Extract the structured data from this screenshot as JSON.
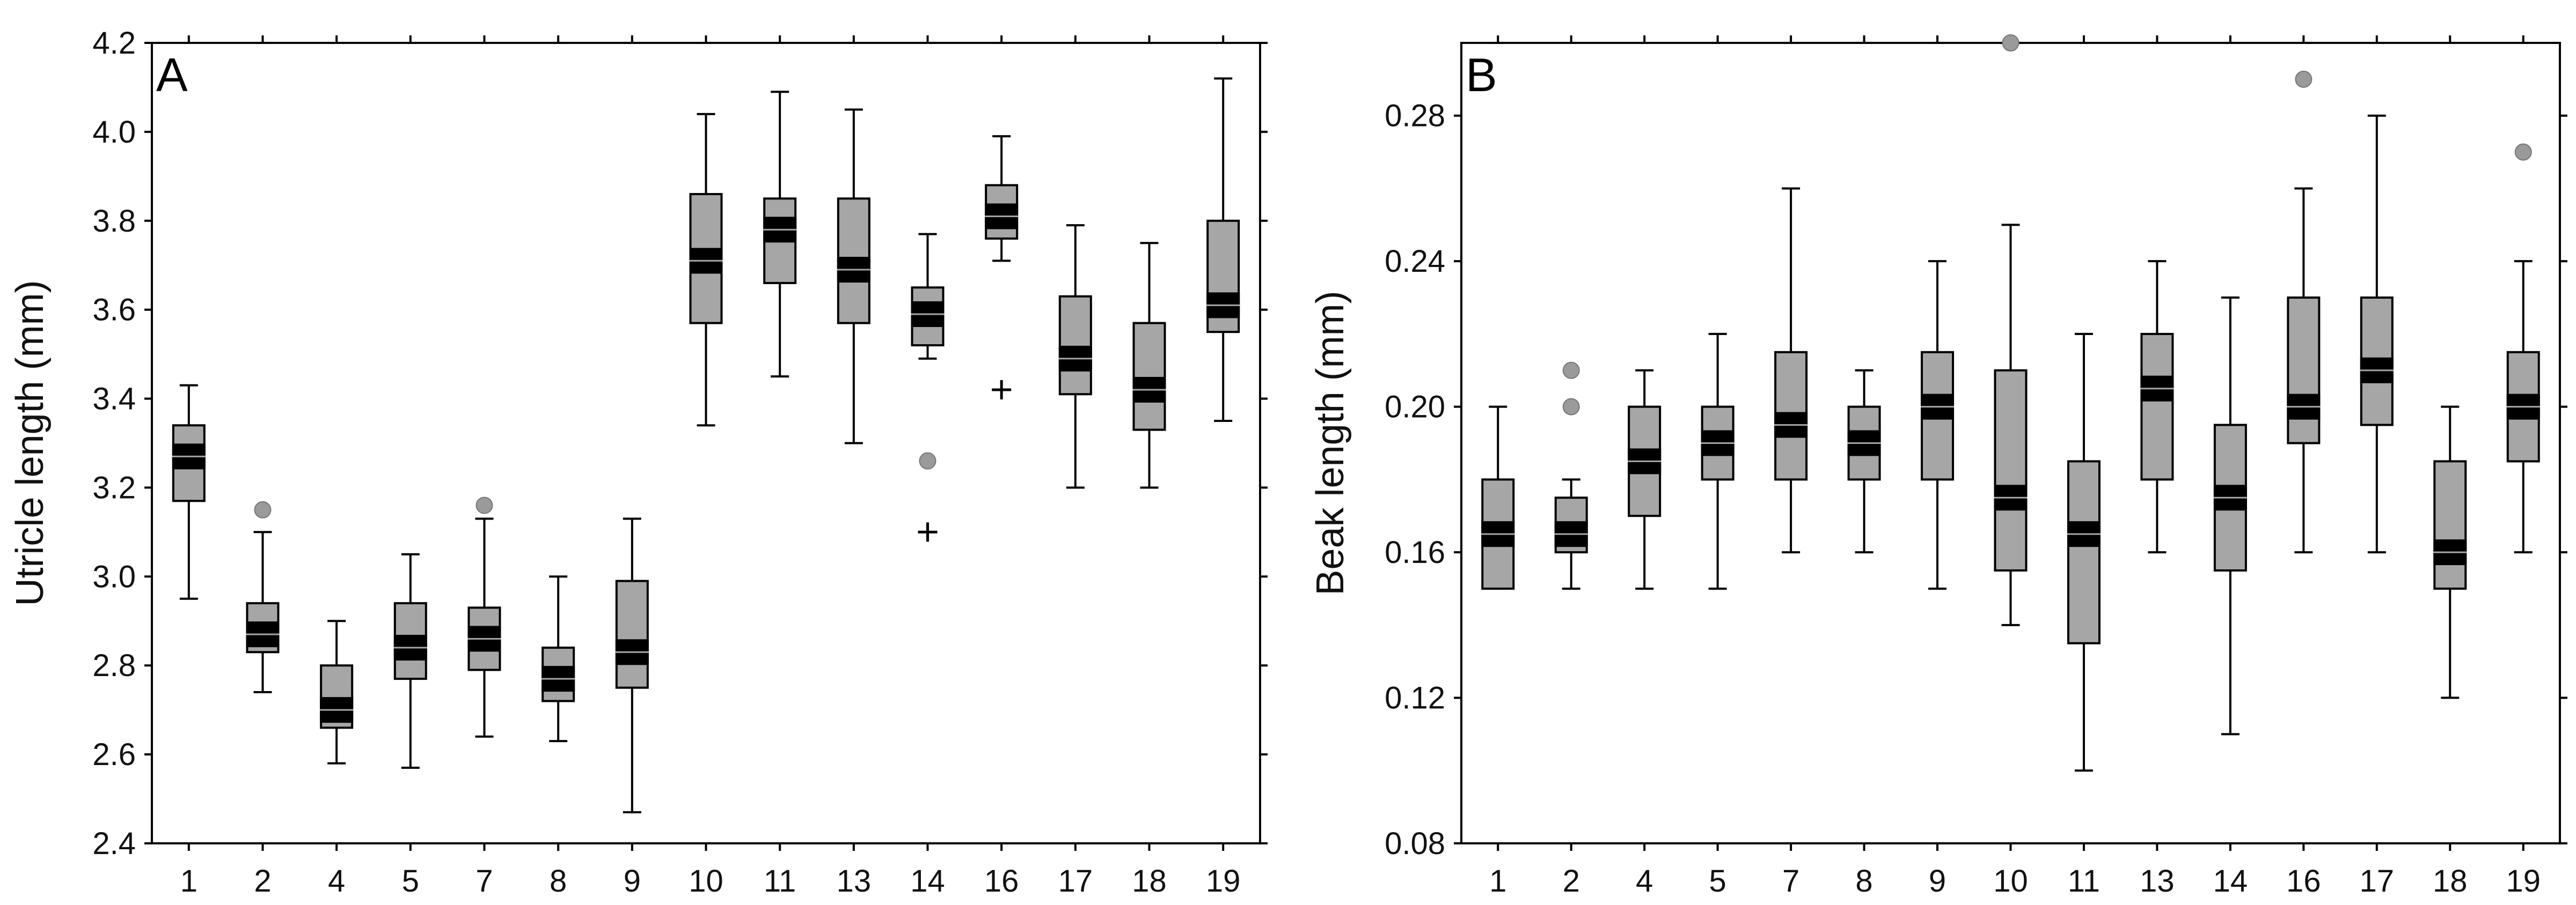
{
  "colors": {
    "box_fill": "#a6a6a6",
    "median": "#000000",
    "outlier": "#9a9a9a",
    "axis": "#000000"
  },
  "chart_data": [
    {
      "type": "box",
      "panel_label": "A",
      "ylabel": "Utricle length (mm)",
      "xlabel": "",
      "ylim": [
        2.4,
        4.2
      ],
      "yticks": [
        "2.4",
        "2.6",
        "2.8",
        "3.0",
        "3.2",
        "3.4",
        "3.6",
        "3.8",
        "4.0",
        "4.2"
      ],
      "categories": [
        "1",
        "2",
        "4",
        "5",
        "7",
        "8",
        "9",
        "10",
        "11",
        "13",
        "14",
        "16",
        "17",
        "18",
        "19"
      ],
      "boxes": [
        {
          "min": 2.95,
          "q1": 3.17,
          "median": 3.27,
          "q3": 3.34,
          "max": 3.43,
          "outliers": [],
          "extremes": []
        },
        {
          "min": 2.74,
          "q1": 2.83,
          "median": 2.87,
          "q3": 2.94,
          "max": 3.1,
          "outliers": [
            3.15
          ],
          "extremes": []
        },
        {
          "min": 2.58,
          "q1": 2.66,
          "median": 2.7,
          "q3": 2.8,
          "max": 2.9,
          "outliers": [],
          "extremes": []
        },
        {
          "min": 2.57,
          "q1": 2.77,
          "median": 2.84,
          "q3": 2.94,
          "max": 3.05,
          "outliers": [],
          "extremes": []
        },
        {
          "min": 2.64,
          "q1": 2.79,
          "median": 2.86,
          "q3": 2.93,
          "max": 3.13,
          "outliers": [
            3.16
          ],
          "extremes": []
        },
        {
          "min": 2.63,
          "q1": 2.72,
          "median": 2.77,
          "q3": 2.84,
          "max": 3.0,
          "outliers": [],
          "extremes": []
        },
        {
          "min": 2.47,
          "q1": 2.75,
          "median": 2.83,
          "q3": 2.99,
          "max": 3.13,
          "outliers": [],
          "extremes": []
        },
        {
          "min": 3.34,
          "q1": 3.57,
          "median": 3.71,
          "q3": 3.86,
          "max": 4.04,
          "outliers": [],
          "extremes": []
        },
        {
          "min": 3.45,
          "q1": 3.66,
          "median": 3.78,
          "q3": 3.85,
          "max": 4.09,
          "outliers": [],
          "extremes": []
        },
        {
          "min": 3.3,
          "q1": 3.57,
          "median": 3.69,
          "q3": 3.85,
          "max": 4.05,
          "outliers": [],
          "extremes": []
        },
        {
          "min": 3.49,
          "q1": 3.52,
          "median": 3.59,
          "q3": 3.65,
          "max": 3.77,
          "outliers": [
            3.26
          ],
          "extremes": [
            3.1
          ]
        },
        {
          "min": 3.71,
          "q1": 3.76,
          "median": 3.81,
          "q3": 3.88,
          "max": 3.99,
          "outliers": [],
          "extremes": [
            3.42
          ]
        },
        {
          "min": 3.2,
          "q1": 3.41,
          "median": 3.49,
          "q3": 3.63,
          "max": 3.79,
          "outliers": [],
          "extremes": []
        },
        {
          "min": 3.2,
          "q1": 3.33,
          "median": 3.42,
          "q3": 3.57,
          "max": 3.75,
          "outliers": [],
          "extremes": []
        },
        {
          "min": 3.35,
          "q1": 3.55,
          "median": 3.61,
          "q3": 3.8,
          "max": 4.12,
          "outliers": [],
          "extremes": []
        }
      ]
    },
    {
      "type": "box",
      "panel_label": "B",
      "ylabel": "Beak length (mm)",
      "xlabel": "",
      "ylim": [
        0.08,
        0.3
      ],
      "yticks": [
        "0.08",
        "0.12",
        "0.16",
        "0.20",
        "0.24",
        "0.28"
      ],
      "categories": [
        "1",
        "2",
        "4",
        "5",
        "7",
        "8",
        "9",
        "10",
        "11",
        "13",
        "14",
        "16",
        "17",
        "18",
        "19"
      ],
      "boxes": [
        {
          "min": 0.15,
          "q1": 0.15,
          "median": 0.165,
          "q3": 0.18,
          "max": 0.2,
          "outliers": [],
          "extremes": []
        },
        {
          "min": 0.15,
          "q1": 0.16,
          "median": 0.165,
          "q3": 0.175,
          "max": 0.18,
          "outliers": [
            0.2,
            0.21
          ],
          "extremes": []
        },
        {
          "min": 0.15,
          "q1": 0.17,
          "median": 0.185,
          "q3": 0.2,
          "max": 0.21,
          "outliers": [],
          "extremes": []
        },
        {
          "min": 0.15,
          "q1": 0.18,
          "median": 0.19,
          "q3": 0.2,
          "max": 0.22,
          "outliers": [],
          "extremes": []
        },
        {
          "min": 0.16,
          "q1": 0.18,
          "median": 0.195,
          "q3": 0.215,
          "max": 0.26,
          "outliers": [],
          "extremes": []
        },
        {
          "min": 0.16,
          "q1": 0.18,
          "median": 0.19,
          "q3": 0.2,
          "max": 0.21,
          "outliers": [],
          "extremes": []
        },
        {
          "min": 0.15,
          "q1": 0.18,
          "median": 0.2,
          "q3": 0.215,
          "max": 0.24,
          "outliers": [],
          "extremes": []
        },
        {
          "min": 0.14,
          "q1": 0.155,
          "median": 0.175,
          "q3": 0.21,
          "max": 0.25,
          "outliers": [
            0.3
          ],
          "extremes": []
        },
        {
          "min": 0.1,
          "q1": 0.135,
          "median": 0.165,
          "q3": 0.185,
          "max": 0.22,
          "outliers": [],
          "extremes": []
        },
        {
          "min": 0.16,
          "q1": 0.18,
          "median": 0.205,
          "q3": 0.22,
          "max": 0.24,
          "outliers": [],
          "extremes": []
        },
        {
          "min": 0.11,
          "q1": 0.155,
          "median": 0.175,
          "q3": 0.195,
          "max": 0.23,
          "outliers": [],
          "extremes": []
        },
        {
          "min": 0.16,
          "q1": 0.19,
          "median": 0.2,
          "q3": 0.23,
          "max": 0.26,
          "outliers": [
            0.29
          ],
          "extremes": []
        },
        {
          "min": 0.16,
          "q1": 0.195,
          "median": 0.21,
          "q3": 0.23,
          "max": 0.28,
          "outliers": [],
          "extremes": []
        },
        {
          "min": 0.12,
          "q1": 0.15,
          "median": 0.16,
          "q3": 0.185,
          "max": 0.2,
          "outliers": [],
          "extremes": []
        },
        {
          "min": 0.16,
          "q1": 0.185,
          "median": 0.2,
          "q3": 0.215,
          "max": 0.24,
          "outliers": [
            0.27
          ],
          "extremes": []
        }
      ]
    }
  ]
}
